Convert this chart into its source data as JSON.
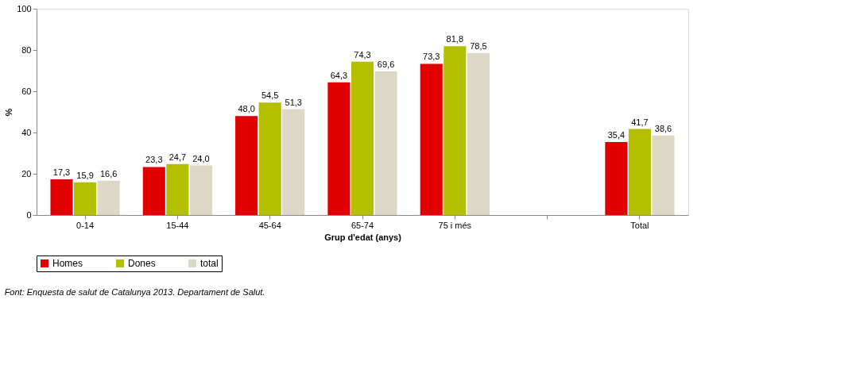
{
  "chart_data": {
    "type": "bar",
    "xlabel": "Grup d'edat (anys)",
    "ylabel": "%",
    "categories": [
      "0-14",
      "15-44",
      "45-64",
      "65-74",
      "75 i més",
      null,
      "Total"
    ],
    "series": [
      {
        "name": "Homes",
        "color": "#e00000",
        "values": [
          17.3,
          23.3,
          48.0,
          64.3,
          73.3,
          null,
          35.4
        ],
        "value_labels": [
          "17,3",
          "23,3",
          "48,0",
          "64,3",
          "73,3",
          null,
          "35,4"
        ]
      },
      {
        "name": "Dones",
        "color": "#b3bf00",
        "values": [
          15.9,
          24.7,
          54.5,
          74.3,
          81.8,
          null,
          41.7
        ],
        "value_labels": [
          "15,9",
          "24,7",
          "54,5",
          "74,3",
          "81,8",
          null,
          "41,7"
        ]
      },
      {
        "name": "total",
        "color": "#ddd8c6",
        "values": [
          16.6,
          24.0,
          51.3,
          69.6,
          78.5,
          null,
          38.6
        ],
        "value_labels": [
          "16,6",
          "24,0",
          "51,3",
          "69,6",
          "78,5",
          null,
          "38,6"
        ]
      }
    ],
    "ylim": [
      0,
      100
    ],
    "yticks": [
      0,
      20,
      40,
      60,
      80,
      100
    ],
    "grid": false,
    "legend": "bottom",
    "annotations": [
      "Font: Enquesta de salut de Catalunya 2013. Departament de Salut."
    ]
  }
}
